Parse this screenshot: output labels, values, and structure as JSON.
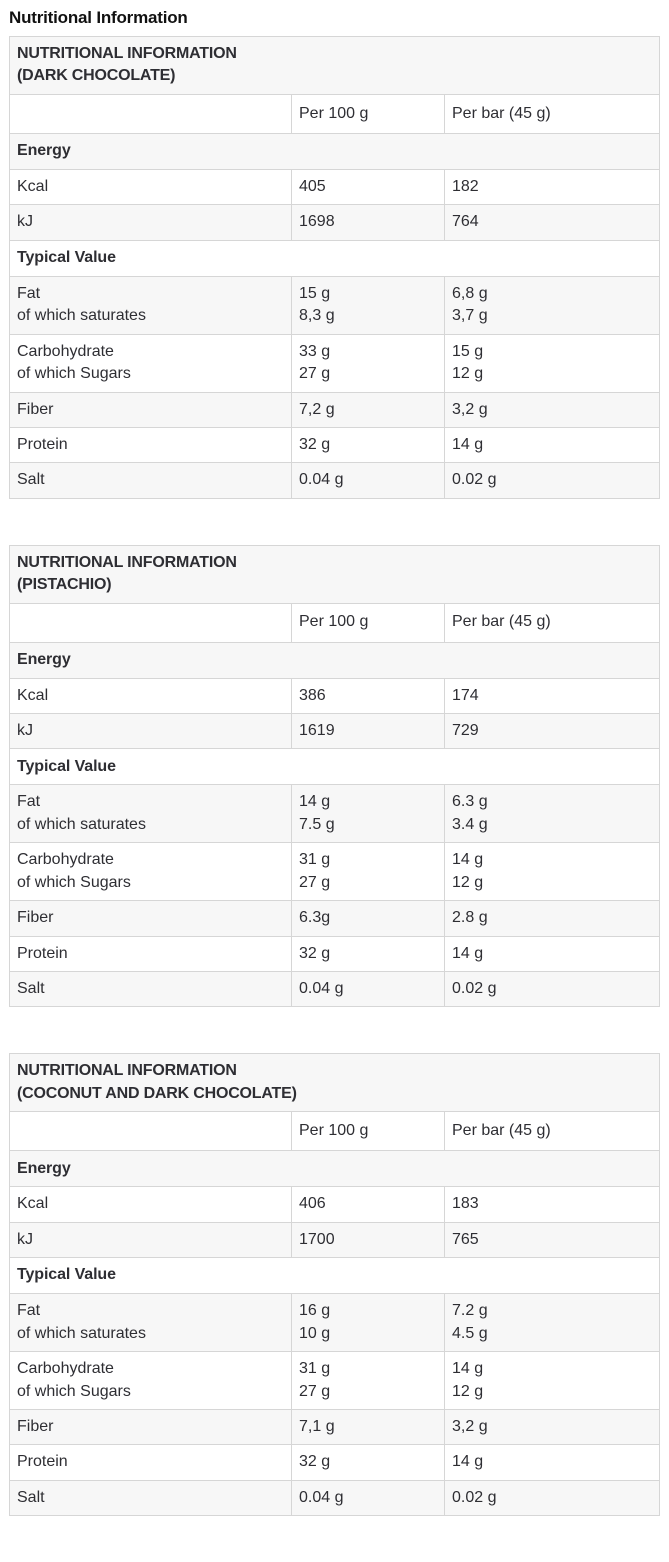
{
  "page": {
    "title": "Nutritional Information"
  },
  "colors": {
    "row_stripe": "#f7f7f7",
    "border": "#d6d6d6",
    "text": "#2e2e33"
  },
  "tables": [
    {
      "title": "NUTRITIONAL INFORMATION\n(DARK CHOCOLATE)",
      "header": {
        "col1": "Per 100 g",
        "col2": "Per bar (45 g)"
      },
      "energy_label": "Energy",
      "rows_energy": [
        {
          "label": "Kcal",
          "per100": "405",
          "perbar": "182"
        },
        {
          "label": "kJ",
          "per100": "1698",
          "perbar": "764"
        }
      ],
      "typical_label": "Typical Value",
      "rows_typical": [
        {
          "label": "Fat\nof which saturates",
          "per100": "15 g\n8,3 g",
          "perbar": "6,8 g\n3,7 g"
        },
        {
          "label": "Carbohydrate\nof which Sugars",
          "per100": "33 g\n27 g",
          "perbar": "15 g\n12 g"
        },
        {
          "label": "Fiber",
          "per100": "7,2 g",
          "perbar": "3,2 g"
        },
        {
          "label": "Protein",
          "per100": "32 g",
          "perbar": "14 g"
        },
        {
          "label": "Salt",
          "per100": "0.04 g",
          "perbar": "0.02 g"
        }
      ]
    },
    {
      "title": "NUTRITIONAL INFORMATION\n(PISTACHIO)",
      "header": {
        "col1": "Per 100 g",
        "col2": "Per bar (45 g)"
      },
      "energy_label": "Energy",
      "rows_energy": [
        {
          "label": "Kcal",
          "per100": "386",
          "perbar": "174"
        },
        {
          "label": "kJ",
          "per100": "1619",
          "perbar": "729"
        }
      ],
      "typical_label": "Typical Value",
      "rows_typical": [
        {
          "label": "Fat\nof which saturates",
          "per100": "14 g\n7.5 g",
          "perbar": "6.3 g\n3.4 g"
        },
        {
          "label": "Carbohydrate\nof which Sugars",
          "per100": "31 g\n27 g",
          "perbar": "14 g\n12 g"
        },
        {
          "label": "Fiber",
          "per100": "6.3g",
          "perbar": "2.8 g"
        },
        {
          "label": "Protein",
          "per100": "32 g",
          "perbar": "14 g"
        },
        {
          "label": "Salt",
          "per100": "0.04 g",
          "perbar": "0.02 g"
        }
      ]
    },
    {
      "title": "NUTRITIONAL INFORMATION\n(COCONUT AND DARK CHOCOLATE)",
      "header": {
        "col1": "Per 100 g",
        "col2": "Per bar (45 g)"
      },
      "energy_label": "Energy",
      "rows_energy": [
        {
          "label": "Kcal",
          "per100": "406",
          "perbar": "183"
        },
        {
          "label": "kJ",
          "per100": "1700",
          "perbar": "765"
        }
      ],
      "typical_label": "Typical Value",
      "rows_typical": [
        {
          "label": "Fat\nof which saturates",
          "per100": "16 g\n10 g",
          "perbar": "7.2 g\n4.5 g"
        },
        {
          "label": "Carbohydrate\nof which Sugars",
          "per100": "31 g\n27 g",
          "perbar": "14 g\n12 g"
        },
        {
          "label": "Fiber",
          "per100": "7,1 g",
          "perbar": "3,2 g"
        },
        {
          "label": "Protein",
          "per100": "32 g",
          "perbar": "14 g"
        },
        {
          "label": "Salt",
          "per100": "0.04 g",
          "perbar": "0.02 g"
        }
      ]
    }
  ]
}
